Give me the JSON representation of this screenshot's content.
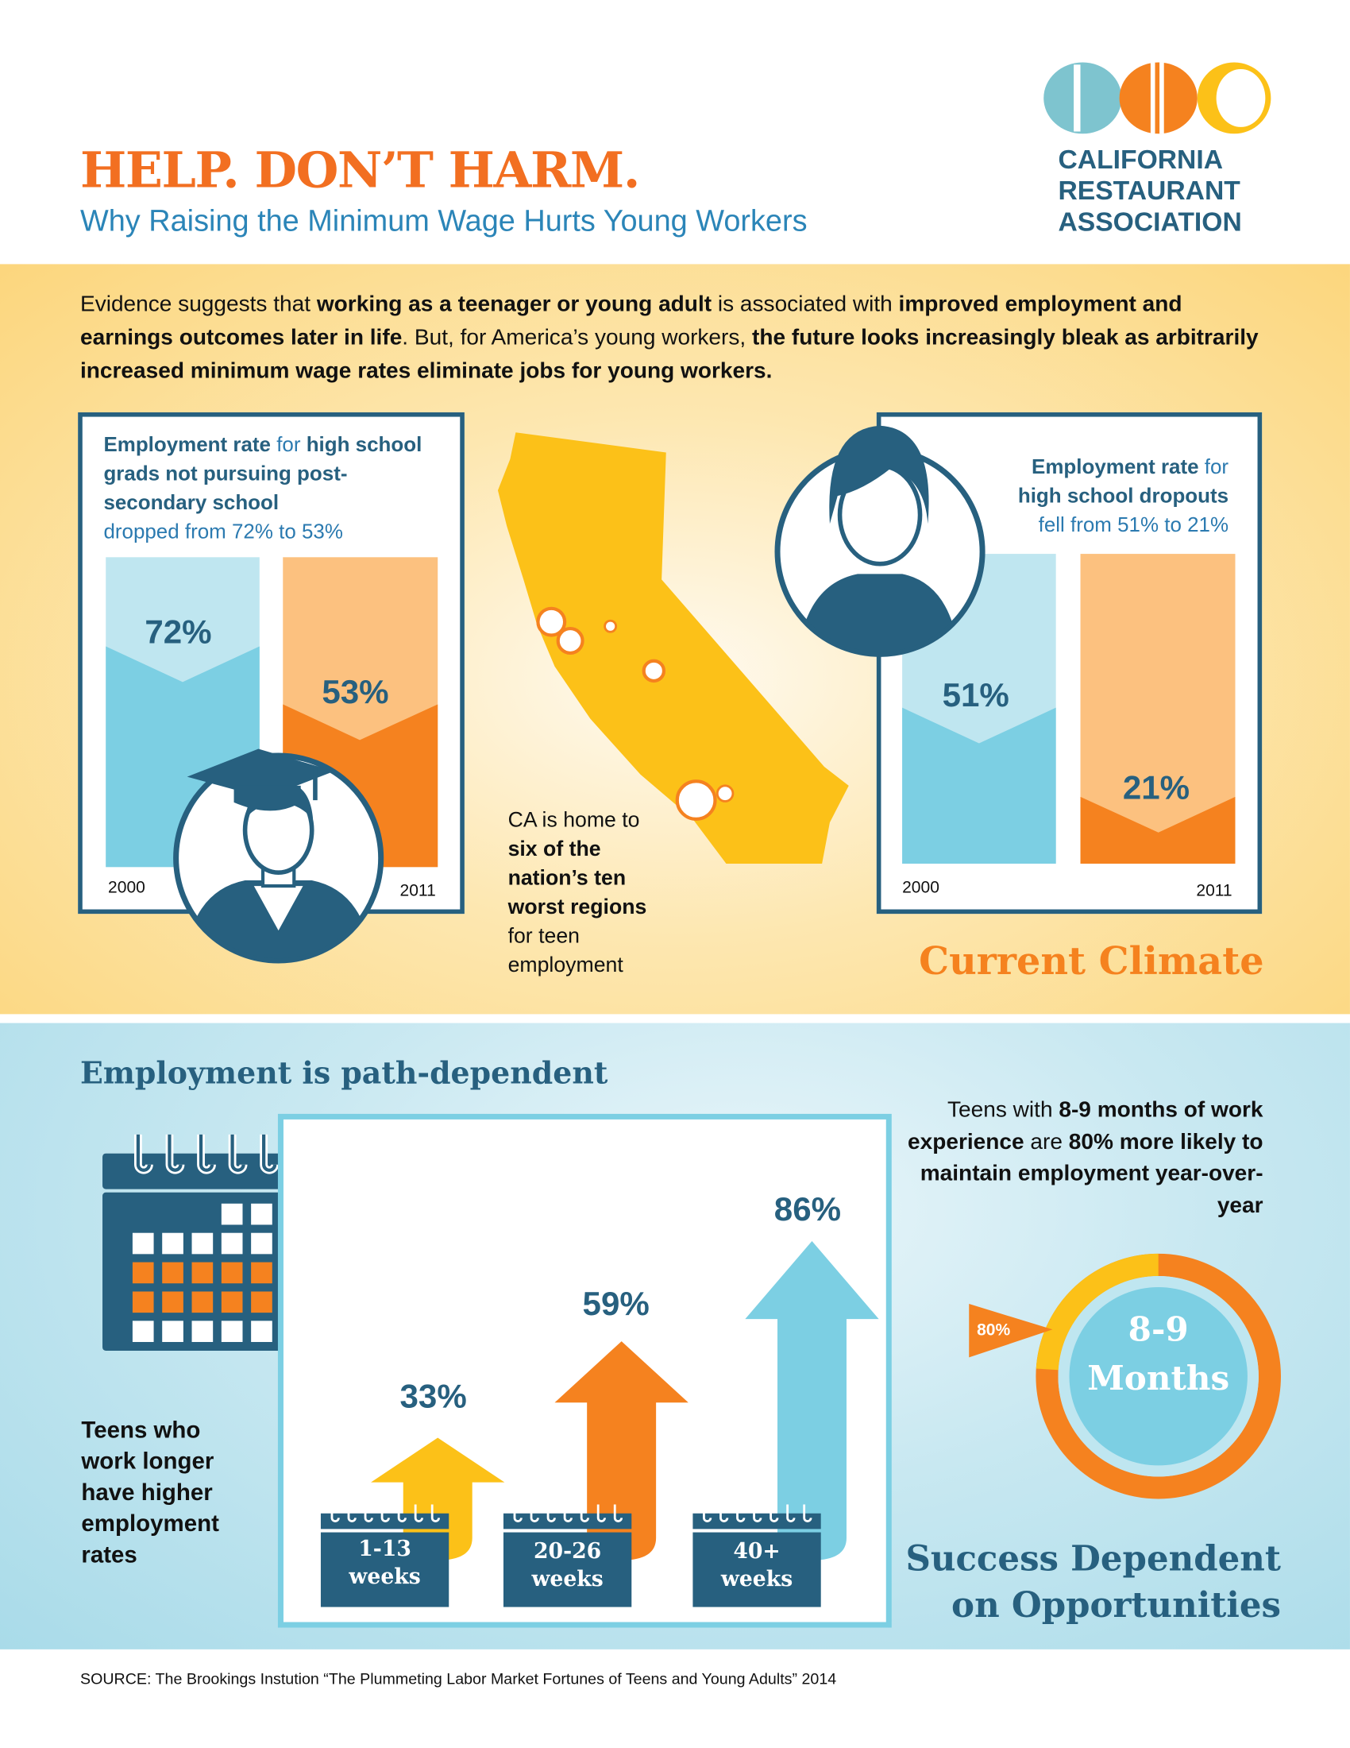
{
  "header": {
    "title": "HELP. DON’T HARM.",
    "subtitle": "Why Raising the Minimum Wage Hurts Young Workers",
    "logo": {
      "line1": "CALIFORNIA",
      "line2": "RESTAURANT",
      "line3": "ASSOCIATION"
    }
  },
  "intro": {
    "t1": "Evidence suggests that ",
    "b1": "working as a teenager or young adult",
    "t2": " is associated with ",
    "b2": "improved employment and earnings outcomes later in life",
    "t3": ". But, for America’s young workers, ",
    "b3": "the future looks increasingly bleak as arbitrarily increased minimum wage rates eliminate jobs for young workers."
  },
  "grads": {
    "b1": "Employment rate",
    "t1": " for ",
    "b2": "high school grads not pursuing post-secondary school",
    "t2": "dropped from 72% to 53%",
    "bars": [
      {
        "year": "2000",
        "label": "72%",
        "value": 72
      },
      {
        "year": "2011",
        "label": "53%",
        "value": 53
      }
    ]
  },
  "map": {
    "t1": "CA is home to",
    "b1": "six of the nation’s ten worst regions",
    "t2": "for teen employment"
  },
  "dropouts": {
    "b1": "Employment rate",
    "t1": " for",
    "b2": "high school dropouts",
    "t2": "fell from 51% to 21%",
    "bars": [
      {
        "year": "2000",
        "label": "51%",
        "value": 51
      },
      {
        "year": "2011",
        "label": "21%",
        "value": 21
      }
    ]
  },
  "climate_heading": "Current Climate",
  "path": {
    "heading": "Employment is path-dependent",
    "teens_text": "Teens who work longer have higher employment rates",
    "arrows": [
      {
        "label": "33%",
        "value": 33,
        "period_line1": "1-13",
        "period_line2": "weeks",
        "color": "#fcc118"
      },
      {
        "label": "59%",
        "value": 59,
        "period_line1": "20-26",
        "period_line2": "weeks",
        "color": "#f5821f"
      },
      {
        "label": "86%",
        "value": 86,
        "period_line1": "40+",
        "period_line2": "weeks",
        "color": "#7ccfe3"
      }
    ]
  },
  "experience": {
    "t1": "Teens with ",
    "b1": "8-9 months of work experience",
    "t2": " are ",
    "b2": "80% more likely to maintain employment year-over-year",
    "flag_label": "80%",
    "donut_line1": "8-9",
    "donut_line2": "Months",
    "donut_value_pct": 80
  },
  "success_heading": {
    "line1": "Success Dependent",
    "line2": "on Opportunities"
  },
  "source": "SOURCE: The Brookings Instution “The Plummeting Labor Market Fortunes of Teens and Young Adults” 2014",
  "colors": {
    "orange": "#f5821f",
    "teal": "#27607f",
    "light_blue": "#7ccfe3",
    "yellow": "#fcc118"
  }
}
